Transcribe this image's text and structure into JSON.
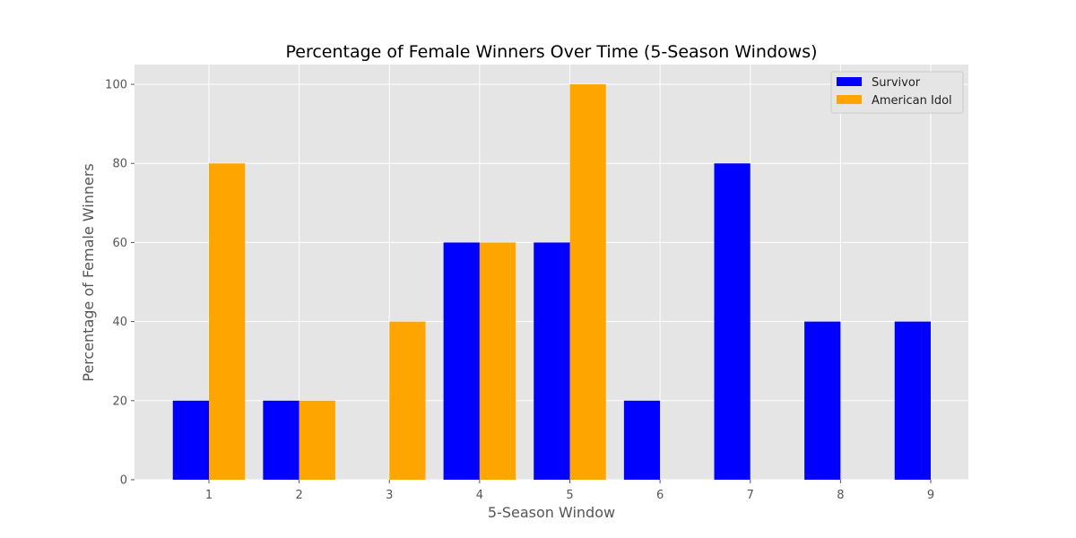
{
  "chart_data": {
    "type": "bar",
    "title": "Percentage of Female Winners Over Time (5-Season Windows)",
    "xlabel": "5-Season Window",
    "ylabel": "Percentage of Female Winners",
    "categories": [
      "1",
      "2",
      "3",
      "4",
      "5",
      "6",
      "7",
      "8",
      "9"
    ],
    "series": [
      {
        "name": "Survivor",
        "color": "#0000ff",
        "values": [
          20,
          20,
          0,
          60,
          60,
          20,
          80,
          40,
          40
        ]
      },
      {
        "name": "American Idol",
        "color": "#ffa500",
        "values": [
          80,
          20,
          40,
          60,
          100,
          0,
          0,
          0,
          0
        ]
      }
    ],
    "yticks": [
      0,
      20,
      40,
      60,
      80,
      100
    ],
    "ylim": [
      0,
      105
    ],
    "grid": true,
    "legend_position": "top-right",
    "background": "#e5e5e5",
    "grid_color": "#ffffff"
  }
}
